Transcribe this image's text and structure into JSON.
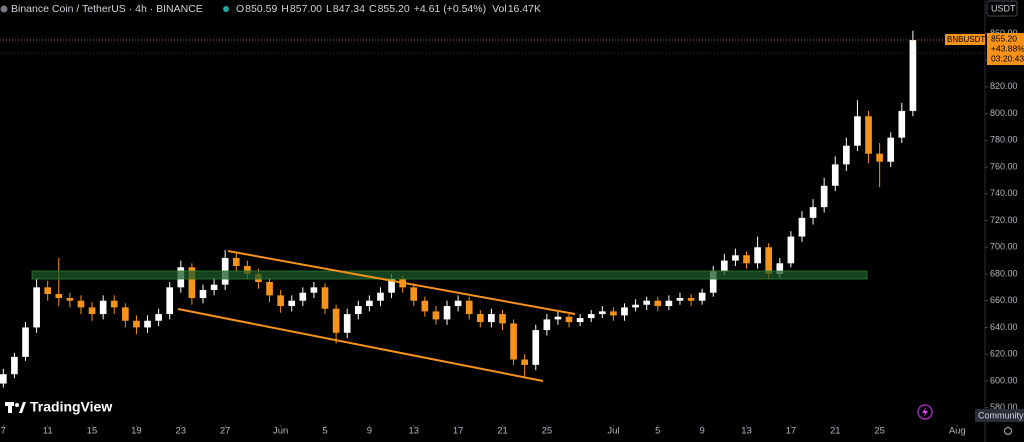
{
  "header": {
    "symbol": "Binance Coin / TetherUS · 4h · BINANCE",
    "stats": [
      {
        "label": "O",
        "value": "850.59"
      },
      {
        "label": "H",
        "value": "857.00"
      },
      {
        "label": "L",
        "value": "847.34"
      },
      {
        "label": "C",
        "value": "855.20"
      }
    ],
    "change": "+4.61 (+0.54%)",
    "volume_label": "Vol",
    "volume": "16.47K"
  },
  "price_badge": {
    "currency": "USDT",
    "ticker": "BNBUSDT",
    "price": "855.20",
    "percent": "+43.88%",
    "countdown": "03:20:43"
  },
  "footer": {
    "brand": "TradingView",
    "tooltip": "Community"
  },
  "chart_data": {
    "type": "candlestick",
    "grid": false,
    "up_color": "#ffffff",
    "down_color": "#f7931a",
    "xlim": [
      -0.3,
      88.5
    ],
    "ylim": [
      567,
      885
    ],
    "xticks": [
      {
        "value": 0,
        "label": "7"
      },
      {
        "value": 4,
        "label": "11"
      },
      {
        "value": 8,
        "label": "15"
      },
      {
        "value": 12,
        "label": "19"
      },
      {
        "value": 16,
        "label": "23"
      },
      {
        "value": 20,
        "label": "27"
      },
      {
        "value": 25,
        "label": "Jun"
      },
      {
        "value": 29,
        "label": "5"
      },
      {
        "value": 33,
        "label": "9"
      },
      {
        "value": 37,
        "label": "13"
      },
      {
        "value": 41,
        "label": "17"
      },
      {
        "value": 45,
        "label": "21"
      },
      {
        "value": 49,
        "label": "25"
      },
      {
        "value": 55,
        "label": "Jul"
      },
      {
        "value": 59,
        "label": "5"
      },
      {
        "value": 63,
        "label": "9"
      },
      {
        "value": 67,
        "label": "13"
      },
      {
        "value": 71,
        "label": "17"
      },
      {
        "value": 75,
        "label": "21"
      },
      {
        "value": 79,
        "label": "25"
      },
      {
        "value": 86,
        "label": "Aug"
      }
    ],
    "yticks": [
      {
        "value": 580,
        "label": "580.00"
      },
      {
        "value": 600,
        "label": "600.00"
      },
      {
        "value": 620,
        "label": "620.00"
      },
      {
        "value": 640,
        "label": "640.00"
      },
      {
        "value": 660,
        "label": "660.00"
      },
      {
        "value": 680,
        "label": "680.00"
      },
      {
        "value": 700,
        "label": "700.00"
      },
      {
        "value": 720,
        "label": "720.00"
      },
      {
        "value": 740,
        "label": "740.00"
      },
      {
        "value": 760,
        "label": "760.00"
      },
      {
        "value": 780,
        "label": "780.00"
      },
      {
        "value": 800,
        "label": "800.00"
      },
      {
        "value": 820,
        "label": "820.00"
      },
      {
        "value": 840,
        "label": "840.00"
      },
      {
        "value": 860,
        "label": "860.00"
      }
    ],
    "x": [
      0,
      1,
      2,
      3,
      4,
      5,
      6,
      7,
      8,
      9,
      10,
      11,
      12,
      13,
      14,
      15,
      16,
      17,
      18,
      19,
      20,
      21,
      22,
      23,
      24,
      25,
      26,
      27,
      28,
      29,
      30,
      31,
      32,
      33,
      34,
      35,
      36,
      37,
      38,
      39,
      40,
      41,
      42,
      43,
      44,
      45,
      46,
      47,
      48,
      49,
      50,
      51,
      52,
      53,
      54,
      55,
      56,
      57,
      58,
      59,
      60,
      61,
      62,
      63,
      64,
      65,
      66,
      67,
      68,
      69,
      70,
      71,
      72,
      73,
      74,
      75,
      76,
      77,
      78,
      79,
      80,
      81,
      82
    ],
    "open": [
      598,
      605,
      618,
      640,
      670,
      665,
      662,
      660,
      655,
      650,
      660,
      655,
      645,
      640,
      645,
      650,
      670,
      685,
      662,
      668,
      672,
      692,
      686,
      680,
      674,
      664,
      656,
      660,
      666,
      670,
      654,
      636,
      650,
      656,
      660,
      666,
      676,
      670,
      660,
      652,
      646,
      656,
      660,
      650,
      644,
      650,
      643,
      616,
      612,
      638,
      646,
      648,
      644,
      647,
      650,
      652,
      649,
      655,
      657,
      660,
      656,
      660,
      662,
      660,
      666,
      682,
      690,
      694,
      688,
      700,
      680,
      688,
      708,
      722,
      730,
      746,
      762,
      776,
      798,
      770,
      764,
      782,
      802
    ],
    "high": [
      609,
      621,
      644,
      676,
      675,
      692,
      666,
      664,
      659,
      664,
      664,
      658,
      649,
      649,
      654,
      674,
      690,
      688,
      672,
      677,
      698,
      696,
      690,
      684,
      677,
      668,
      664,
      670,
      674,
      673,
      657,
      654,
      660,
      664,
      670,
      680,
      679,
      673,
      663,
      656,
      660,
      664,
      663,
      653,
      654,
      653,
      646,
      620,
      642,
      650,
      652,
      651,
      650,
      653,
      656,
      655,
      658,
      661,
      663,
      663,
      664,
      666,
      665,
      669,
      686,
      695,
      699,
      697,
      708,
      703,
      692,
      712,
      727,
      736,
      752,
      768,
      782,
      810,
      802,
      778,
      786,
      808,
      862
    ],
    "low": [
      595,
      602,
      615,
      636,
      660,
      656,
      655,
      650,
      645,
      646,
      650,
      640,
      635,
      636,
      641,
      646,
      666,
      657,
      658,
      664,
      668,
      682,
      676,
      669,
      659,
      651,
      652,
      656,
      662,
      650,
      628,
      632,
      646,
      652,
      656,
      662,
      666,
      656,
      648,
      642,
      642,
      652,
      646,
      640,
      640,
      638,
      612,
      603,
      608,
      634,
      642,
      640,
      641,
      644,
      647,
      645,
      645,
      652,
      653,
      652,
      653,
      657,
      656,
      657,
      663,
      679,
      686,
      684,
      684,
      676,
      677,
      685,
      704,
      717,
      726,
      742,
      757,
      772,
      763,
      745,
      760,
      778,
      798
    ],
    "close": [
      605,
      618,
      640,
      670,
      665,
      662,
      660,
      655,
      650,
      660,
      655,
      645,
      640,
      645,
      650,
      670,
      685,
      662,
      668,
      672,
      692,
      686,
      680,
      674,
      664,
      656,
      660,
      666,
      670,
      654,
      636,
      650,
      656,
      660,
      666,
      676,
      670,
      660,
      652,
      646,
      656,
      660,
      650,
      644,
      650,
      643,
      616,
      612,
      638,
      646,
      648,
      644,
      647,
      650,
      652,
      649,
      655,
      657,
      660,
      656,
      660,
      662,
      660,
      666,
      682,
      690,
      694,
      688,
      700,
      680,
      688,
      708,
      722,
      730,
      746,
      762,
      776,
      798,
      770,
      764,
      782,
      802,
      855
    ]
  }
}
